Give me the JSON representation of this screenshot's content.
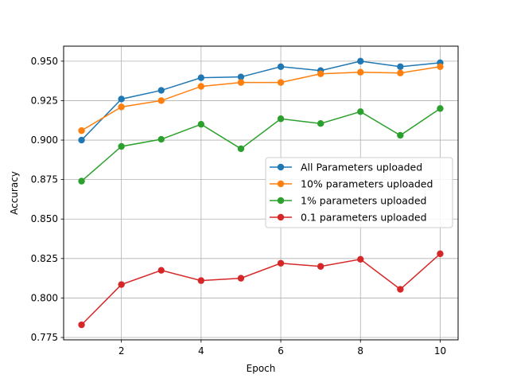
{
  "chart_data": {
    "type": "line",
    "title": "",
    "xlabel": "Epoch",
    "ylabel": "Accuracy",
    "x": [
      1,
      2,
      3,
      4,
      5,
      6,
      7,
      8,
      9,
      10
    ],
    "xlim": [
      0.55,
      10.45
    ],
    "ylim": [
      0.7735,
      0.9595
    ],
    "xticks": [
      2,
      4,
      6,
      8,
      10
    ],
    "yticks": [
      0.775,
      0.8,
      0.825,
      0.85,
      0.875,
      0.9,
      0.925,
      0.95
    ],
    "grid": true,
    "legend_position": "center-right",
    "series": [
      {
        "name": "All Parameters uploaded",
        "color": "#1f77b4",
        "values": [
          0.9,
          0.926,
          0.9315,
          0.9395,
          0.94,
          0.9465,
          0.944,
          0.95,
          0.9465,
          0.949
        ]
      },
      {
        "name": "10% parameters uploaded",
        "color": "#ff7f0e",
        "values": [
          0.906,
          0.921,
          0.925,
          0.934,
          0.9365,
          0.9365,
          0.942,
          0.943,
          0.9425,
          0.9465
        ]
      },
      {
        "name": "1% parameters uploaded",
        "color": "#2ca02c",
        "values": [
          0.874,
          0.896,
          0.9005,
          0.91,
          0.8945,
          0.9135,
          0.9105,
          0.918,
          0.903,
          0.92
        ]
      },
      {
        "name": "0.1 parameters uploaded",
        "color": "#d62728",
        "values": [
          0.783,
          0.8085,
          0.8175,
          0.811,
          0.8125,
          0.822,
          0.82,
          0.8245,
          0.8055,
          0.828
        ]
      }
    ]
  }
}
